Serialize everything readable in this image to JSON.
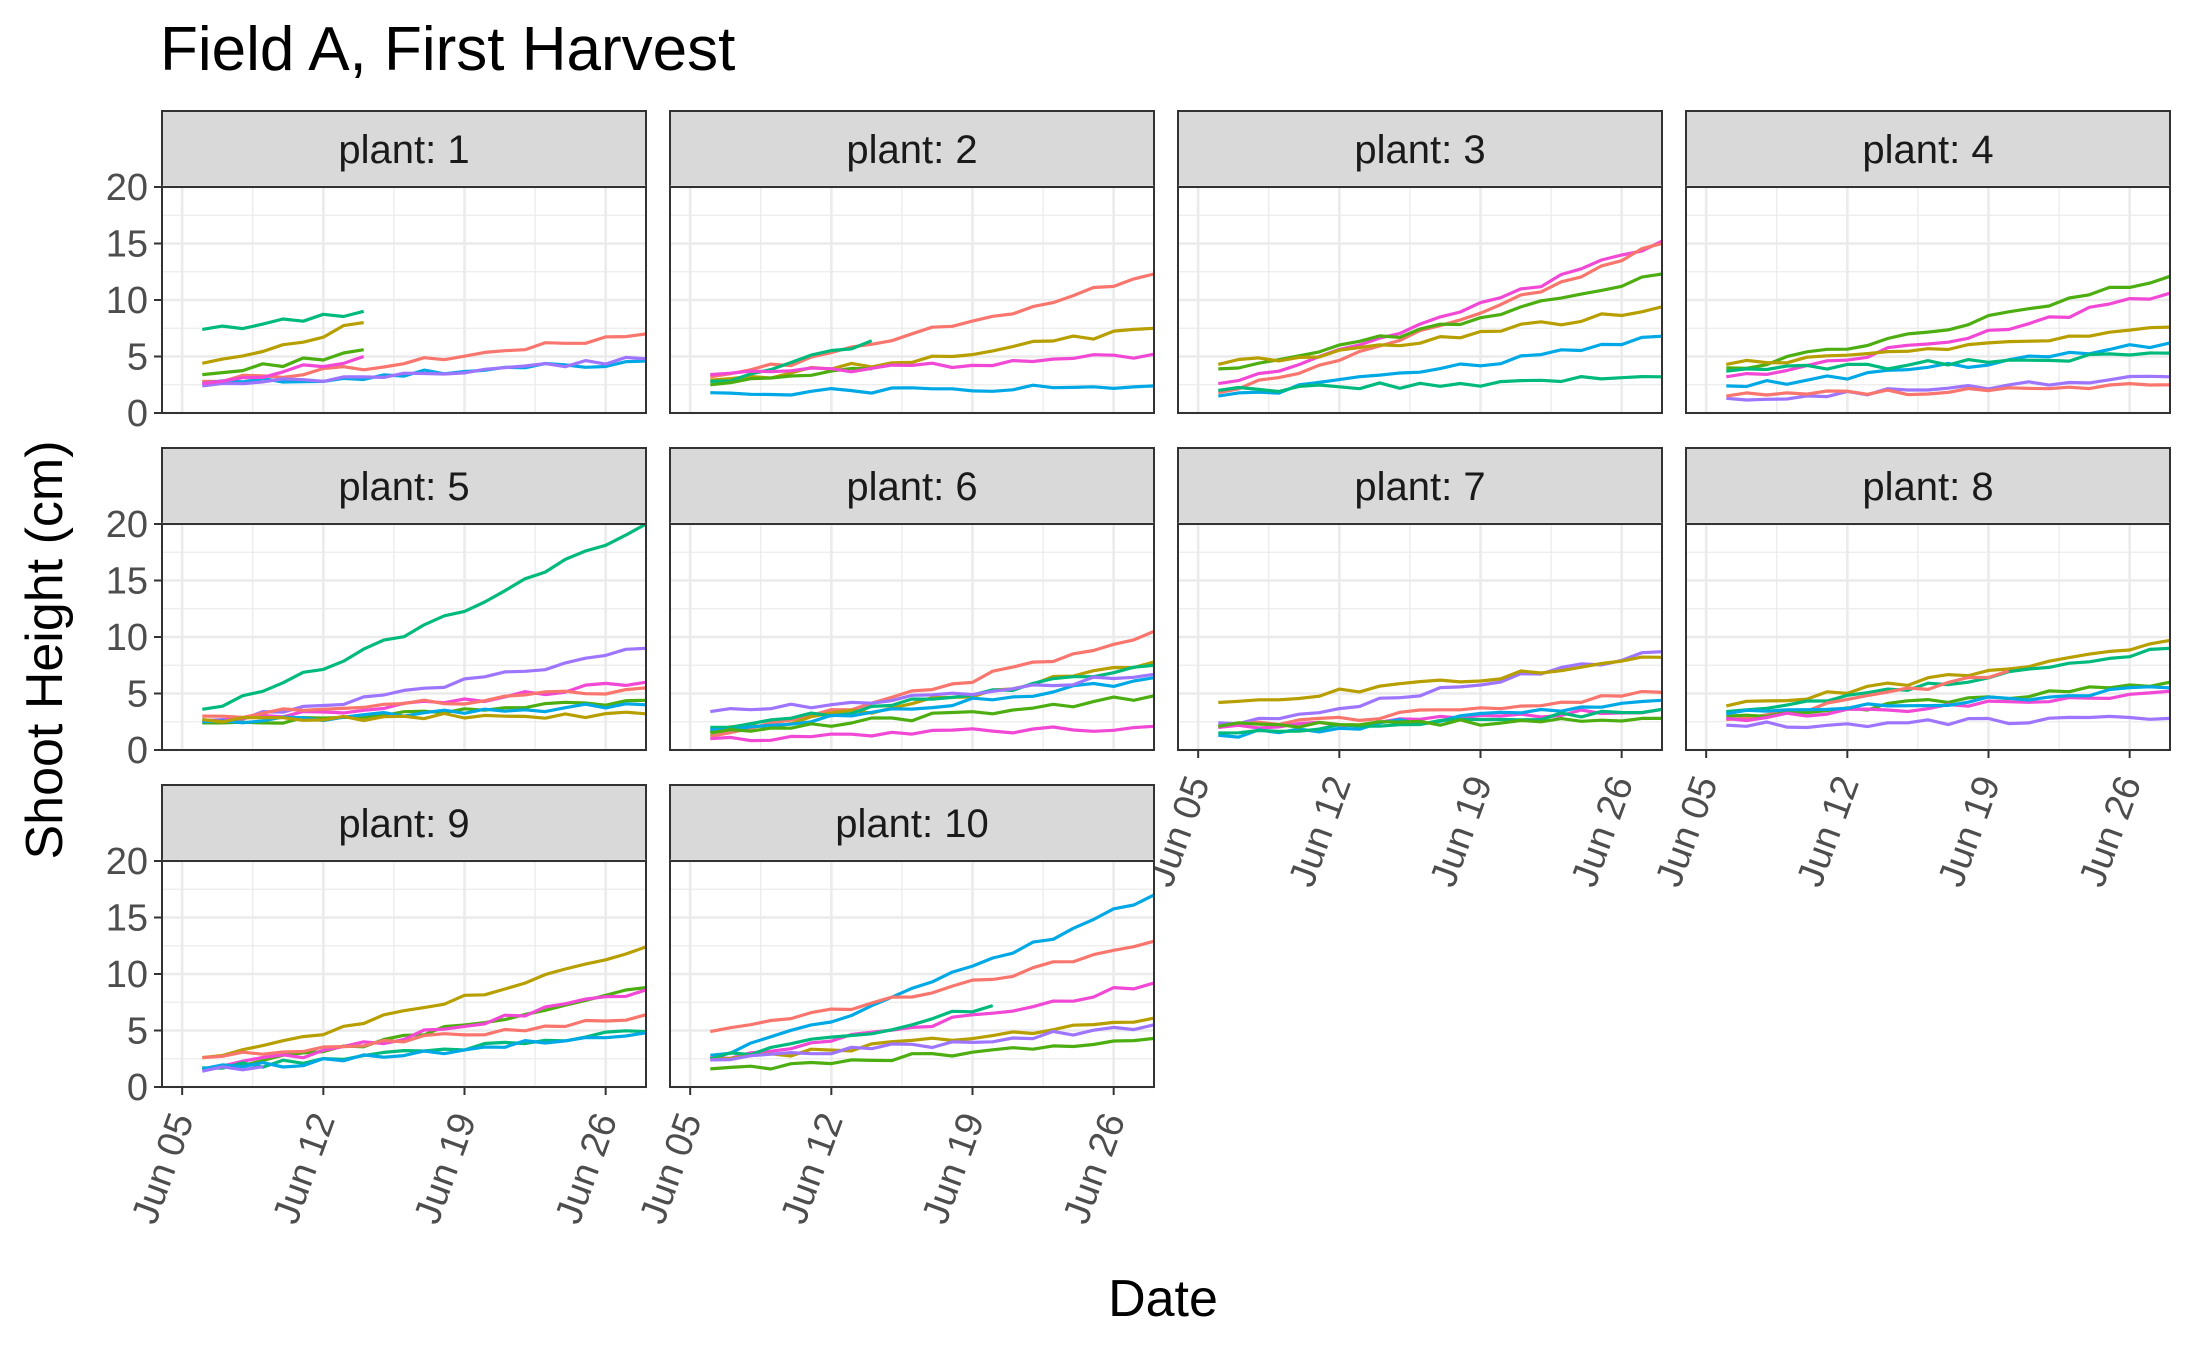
{
  "chart_data": {
    "type": "line",
    "title": "Field A, First Harvest",
    "xlabel": "Date",
    "ylabel": "Shoot Height (cm)",
    "facet_prefix": "plant: ",
    "xlim": [
      "2023-06-04",
      "2023-06-28"
    ],
    "ylim": [
      0,
      20
    ],
    "yticks": [
      0,
      5,
      10,
      15,
      20
    ],
    "yticklabels": [
      "0",
      "5",
      "10",
      "15",
      "20"
    ],
    "xticks": [
      "2023-06-05",
      "2023-06-12",
      "2023-06-19",
      "2023-06-26"
    ],
    "xticklabels": [
      "Jun 05",
      "Jun 12",
      "Jun 19",
      "Jun 26"
    ],
    "grid": true,
    "legend": "none",
    "colors": {
      "red": "#F8766D",
      "olive": "#B79F00",
      "green": "#4DAE11",
      "teal": "#00BA7D",
      "blue": "#00A9E6",
      "purple": "#9E75FF",
      "pink": "#F148D5",
      "strip": "#d9d9d9",
      "panel_border": "#333333",
      "grid": "#ebebeb"
    },
    "panels": [
      {
        "label": "1",
        "series": [
          {
            "color": "teal",
            "x": [
              "2023-06-06",
              "2023-06-14"
            ],
            "y": [
              7.4,
              9.0
            ]
          },
          {
            "color": "olive",
            "x": [
              "2023-06-06",
              "2023-06-14"
            ],
            "y": [
              4.4,
              8.0
            ]
          },
          {
            "color": "green",
            "x": [
              "2023-06-06",
              "2023-06-14"
            ],
            "y": [
              3.4,
              5.6
            ]
          },
          {
            "color": "red",
            "x": [
              "2023-06-06",
              "2023-06-28"
            ],
            "y": [
              2.8,
              7.0
            ]
          },
          {
            "color": "blue",
            "x": [
              "2023-06-06",
              "2023-06-28"
            ],
            "y": [
              2.6,
              4.6
            ]
          },
          {
            "color": "purple",
            "x": [
              "2023-06-06",
              "2023-06-28"
            ],
            "y": [
              2.4,
              4.8
            ]
          },
          {
            "color": "pink",
            "x": [
              "2023-06-06",
              "2023-06-14"
            ],
            "y": [
              2.6,
              5.0
            ]
          }
        ]
      },
      {
        "label": "2",
        "series": [
          {
            "color": "red",
            "x": [
              "2023-06-06",
              "2023-06-28"
            ],
            "y": [
              3.2,
              12.3
            ]
          },
          {
            "color": "olive",
            "x": [
              "2023-06-06",
              "2023-06-28"
            ],
            "y": [
              2.9,
              7.5
            ]
          },
          {
            "color": "teal",
            "x": [
              "2023-06-06",
              "2023-06-14"
            ],
            "y": [
              2.8,
              6.4
            ]
          },
          {
            "color": "green",
            "x": [
              "2023-06-06",
              "2023-06-14"
            ],
            "y": [
              2.5,
              3.9
            ]
          },
          {
            "color": "pink",
            "x": [
              "2023-06-06",
              "2023-06-28"
            ],
            "y": [
              3.4,
              5.2
            ]
          },
          {
            "color": "blue",
            "x": [
              "2023-06-06",
              "2023-06-28"
            ],
            "y": [
              1.8,
              2.4
            ]
          }
        ]
      },
      {
        "label": "3",
        "series": [
          {
            "color": "pink",
            "x": [
              "2023-06-06",
              "2023-06-28"
            ],
            "y": [
              2.6,
              15.2
            ]
          },
          {
            "color": "red",
            "x": [
              "2023-06-06",
              "2023-06-28"
            ],
            "y": [
              1.8,
              15.0
            ]
          },
          {
            "color": "green",
            "x": [
              "2023-06-06",
              "2023-06-28"
            ],
            "y": [
              3.9,
              12.3
            ]
          },
          {
            "color": "olive",
            "x": [
              "2023-06-06",
              "2023-06-28"
            ],
            "y": [
              4.3,
              9.4
            ]
          },
          {
            "color": "blue",
            "x": [
              "2023-06-06",
              "2023-06-28"
            ],
            "y": [
              1.5,
              6.8
            ]
          },
          {
            "color": "teal",
            "x": [
              "2023-06-06",
              "2023-06-28"
            ],
            "y": [
              2.0,
              3.2
            ]
          }
        ]
      },
      {
        "label": "4",
        "series": [
          {
            "color": "green",
            "x": [
              "2023-06-06",
              "2023-06-28"
            ],
            "y": [
              4.0,
              12.1
            ]
          },
          {
            "color": "pink",
            "x": [
              "2023-06-06",
              "2023-06-28"
            ],
            "y": [
              3.2,
              10.6
            ]
          },
          {
            "color": "olive",
            "x": [
              "2023-06-06",
              "2023-06-28"
            ],
            "y": [
              4.3,
              7.6
            ]
          },
          {
            "color": "blue",
            "x": [
              "2023-06-06",
              "2023-06-28"
            ],
            "y": [
              2.4,
              6.2
            ]
          },
          {
            "color": "teal",
            "x": [
              "2023-06-06",
              "2023-06-28"
            ],
            "y": [
              3.7,
              5.3
            ]
          },
          {
            "color": "purple",
            "x": [
              "2023-06-06",
              "2023-06-28"
            ],
            "y": [
              1.3,
              3.2
            ]
          },
          {
            "color": "red",
            "x": [
              "2023-06-06",
              "2023-06-28"
            ],
            "y": [
              1.5,
              2.5
            ]
          }
        ]
      },
      {
        "label": "5",
        "series": [
          {
            "color": "teal",
            "x": [
              "2023-06-06",
              "2023-06-28"
            ],
            "y": [
              3.6,
              20.0
            ]
          },
          {
            "color": "purple",
            "x": [
              "2023-06-06",
              "2023-06-28"
            ],
            "y": [
              2.6,
              9.0
            ]
          },
          {
            "color": "pink",
            "x": [
              "2023-06-06",
              "2023-06-28"
            ],
            "y": [
              2.5,
              6.0
            ]
          },
          {
            "color": "red",
            "x": [
              "2023-06-06",
              "2023-06-28"
            ],
            "y": [
              3.0,
              5.5
            ]
          },
          {
            "color": "green",
            "x": [
              "2023-06-06",
              "2023-06-28"
            ],
            "y": [
              2.4,
              4.4
            ]
          },
          {
            "color": "blue",
            "x": [
              "2023-06-06",
              "2023-06-28"
            ],
            "y": [
              2.5,
              4.0
            ]
          },
          {
            "color": "olive",
            "x": [
              "2023-06-06",
              "2023-06-28"
            ],
            "y": [
              2.7,
              3.2
            ]
          }
        ]
      },
      {
        "label": "6",
        "series": [
          {
            "color": "red",
            "x": [
              "2023-06-06",
              "2023-06-28"
            ],
            "y": [
              1.2,
              10.5
            ]
          },
          {
            "color": "olive",
            "x": [
              "2023-06-06",
              "2023-06-28"
            ],
            "y": [
              1.6,
              7.8
            ]
          },
          {
            "color": "teal",
            "x": [
              "2023-06-06",
              "2023-06-28"
            ],
            "y": [
              2.0,
              7.5
            ]
          },
          {
            "color": "blue",
            "x": [
              "2023-06-06",
              "2023-06-28"
            ],
            "y": [
              1.8,
              6.4
            ]
          },
          {
            "color": "purple",
            "x": [
              "2023-06-06",
              "2023-06-28"
            ],
            "y": [
              3.4,
              6.7
            ]
          },
          {
            "color": "green",
            "x": [
              "2023-06-06",
              "2023-06-28"
            ],
            "y": [
              1.5,
              4.8
            ]
          },
          {
            "color": "pink",
            "x": [
              "2023-06-06",
              "2023-06-28"
            ],
            "y": [
              1.0,
              2.1
            ]
          }
        ]
      },
      {
        "label": "7",
        "series": [
          {
            "color": "purple",
            "x": [
              "2023-06-06",
              "2023-06-28"
            ],
            "y": [
              2.4,
              8.7
            ]
          },
          {
            "color": "olive",
            "x": [
              "2023-06-06",
              "2023-06-28"
            ],
            "y": [
              4.2,
              8.2
            ]
          },
          {
            "color": "red",
            "x": [
              "2023-06-06",
              "2023-06-28"
            ],
            "y": [
              2.0,
              5.1
            ]
          },
          {
            "color": "pink",
            "x": [
              "2023-06-06",
              "2023-06-28"
            ],
            "y": [
              2.0,
              3.6
            ]
          },
          {
            "color": "blue",
            "x": [
              "2023-06-06",
              "2023-06-28"
            ],
            "y": [
              1.3,
              4.4
            ]
          },
          {
            "color": "teal",
            "x": [
              "2023-06-06",
              "2023-06-28"
            ],
            "y": [
              1.5,
              3.6
            ]
          },
          {
            "color": "green",
            "x": [
              "2023-06-06",
              "2023-06-28"
            ],
            "y": [
              2.1,
              2.8
            ]
          }
        ]
      },
      {
        "label": "8",
        "series": [
          {
            "color": "olive",
            "x": [
              "2023-06-06",
              "2023-06-28"
            ],
            "y": [
              3.9,
              9.7
            ]
          },
          {
            "color": "teal",
            "x": [
              "2023-06-06",
              "2023-06-28"
            ],
            "y": [
              3.4,
              9.0
            ]
          },
          {
            "color": "red",
            "x": [
              "2023-06-06",
              "2023-06-20"
            ],
            "y": [
              2.7,
              7.0
            ]
          },
          {
            "color": "green",
            "x": [
              "2023-06-06",
              "2023-06-28"
            ],
            "y": [
              3.0,
              6.0
            ]
          },
          {
            "color": "pink",
            "x": [
              "2023-06-06",
              "2023-06-28"
            ],
            "y": [
              2.8,
              5.2
            ]
          },
          {
            "color": "blue",
            "x": [
              "2023-06-06",
              "2023-06-28"
            ],
            "y": [
              3.2,
              5.5
            ]
          },
          {
            "color": "purple",
            "x": [
              "2023-06-06",
              "2023-06-28"
            ],
            "y": [
              2.2,
              2.8
            ]
          }
        ]
      },
      {
        "label": "9",
        "series": [
          {
            "color": "olive",
            "x": [
              "2023-06-06",
              "2023-06-28"
            ],
            "y": [
              2.6,
              12.4
            ]
          },
          {
            "color": "green",
            "x": [
              "2023-06-06",
              "2023-06-28"
            ],
            "y": [
              1.6,
              8.8
            ]
          },
          {
            "color": "pink",
            "x": [
              "2023-06-06",
              "2023-06-28"
            ],
            "y": [
              1.6,
              8.6
            ]
          },
          {
            "color": "red",
            "x": [
              "2023-06-06",
              "2023-06-28"
            ],
            "y": [
              2.6,
              6.4
            ]
          },
          {
            "color": "teal",
            "x": [
              "2023-06-06",
              "2023-06-28"
            ],
            "y": [
              1.7,
              4.9
            ]
          },
          {
            "color": "blue",
            "x": [
              "2023-06-06",
              "2023-06-28"
            ],
            "y": [
              1.6,
              4.8
            ]
          },
          {
            "color": "purple",
            "x": [
              "2023-06-06",
              "2023-06-09"
            ],
            "y": [
              1.4,
              1.8
            ]
          }
        ]
      },
      {
        "label": "10",
        "series": [
          {
            "color": "blue",
            "x": [
              "2023-06-06",
              "2023-06-28"
            ],
            "y": [
              2.8,
              17.0
            ]
          },
          {
            "color": "red",
            "x": [
              "2023-06-06",
              "2023-06-28"
            ],
            "y": [
              4.9,
              12.9
            ]
          },
          {
            "color": "pink",
            "x": [
              "2023-06-06",
              "2023-06-28"
            ],
            "y": [
              2.6,
              9.2
            ]
          },
          {
            "color": "teal",
            "x": [
              "2023-06-06",
              "2023-06-20"
            ],
            "y": [
              2.5,
              7.2
            ]
          },
          {
            "color": "olive",
            "x": [
              "2023-06-06",
              "2023-06-28"
            ],
            "y": [
              2.4,
              6.1
            ]
          },
          {
            "color": "purple",
            "x": [
              "2023-06-06",
              "2023-06-28"
            ],
            "y": [
              2.4,
              5.5
            ]
          },
          {
            "color": "green",
            "x": [
              "2023-06-06",
              "2023-06-28"
            ],
            "y": [
              1.6,
              4.3
            ]
          }
        ]
      }
    ]
  }
}
